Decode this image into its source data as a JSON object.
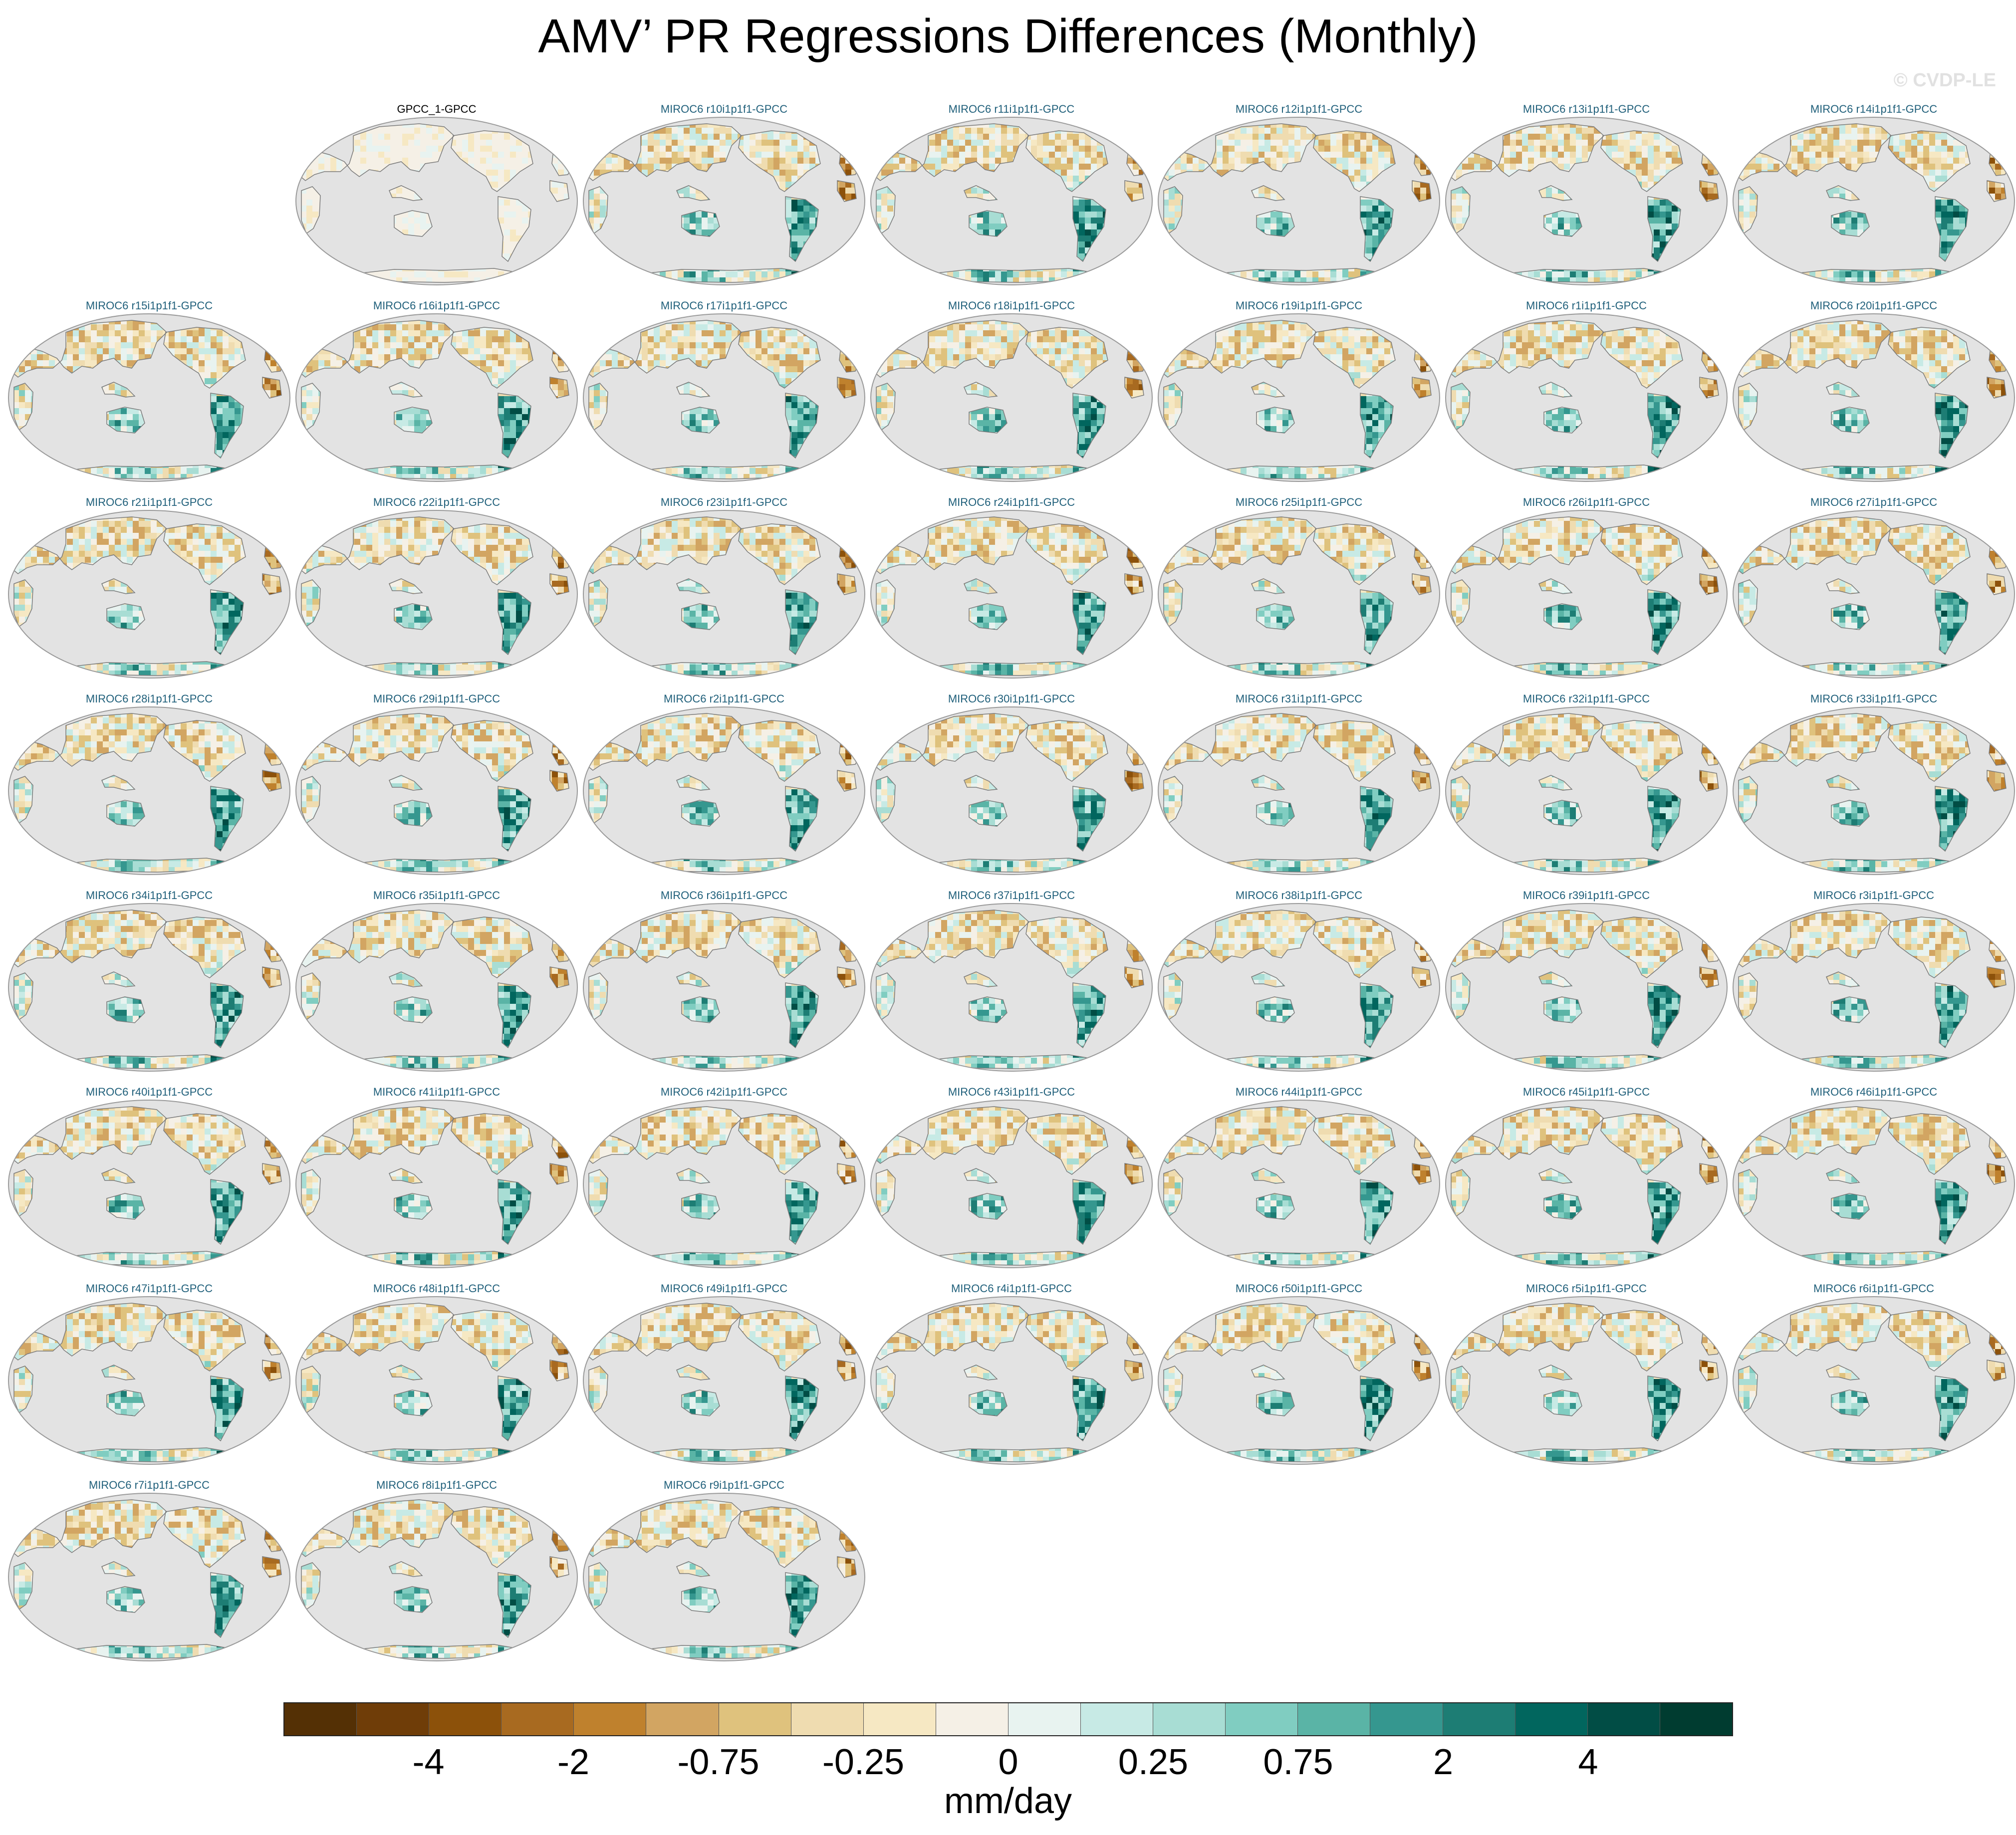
{
  "title": "AMV’ PR Regressions Differences (Monthly)",
  "watermark": "© CVDP-LE",
  "colors": {
    "ocean": "#e3e3e3",
    "coast": "#7a7a7a",
    "label_obs": "#000000",
    "label_model": "#1f5f7a"
  },
  "colorbar": {
    "unit": "mm/day",
    "colors": [
      "#543005",
      "#6f3d08",
      "#8c510a",
      "#a86a20",
      "#bf812d",
      "#d2a562",
      "#dfc27d",
      "#efdcb0",
      "#f6e8c3",
      "#f5f0e6",
      "#e8f3f0",
      "#c7eae5",
      "#a8ddd4",
      "#80cdc1",
      "#5ab4a6",
      "#35978f",
      "#1d7d74",
      "#01665e",
      "#014d45",
      "#003c30"
    ],
    "tick_labels": [
      "-4",
      "-2",
      "-0.75",
      "-0.25",
      "0",
      "0.25",
      "0.75",
      "2",
      "4"
    ]
  },
  "panels": [
    {
      "label": "GPCC_1-GPCC",
      "type": "obs"
    },
    {
      "label": "MIROC6 r10i1p1f1-GPCC",
      "type": "model"
    },
    {
      "label": "MIROC6 r11i1p1f1-GPCC",
      "type": "model"
    },
    {
      "label": "MIROC6 r12i1p1f1-GPCC",
      "type": "model"
    },
    {
      "label": "MIROC6 r13i1p1f1-GPCC",
      "type": "model"
    },
    {
      "label": "MIROC6 r14i1p1f1-GPCC",
      "type": "model"
    },
    {
      "label": "MIROC6 r15i1p1f1-GPCC",
      "type": "model"
    },
    {
      "label": "MIROC6 r16i1p1f1-GPCC",
      "type": "model"
    },
    {
      "label": "MIROC6 r17i1p1f1-GPCC",
      "type": "model"
    },
    {
      "label": "MIROC6 r18i1p1f1-GPCC",
      "type": "model"
    },
    {
      "label": "MIROC6 r19i1p1f1-GPCC",
      "type": "model"
    },
    {
      "label": "MIROC6 r1i1p1f1-GPCC",
      "type": "model"
    },
    {
      "label": "MIROC6 r20i1p1f1-GPCC",
      "type": "model"
    },
    {
      "label": "MIROC6 r21i1p1f1-GPCC",
      "type": "model"
    },
    {
      "label": "MIROC6 r22i1p1f1-GPCC",
      "type": "model"
    },
    {
      "label": "MIROC6 r23i1p1f1-GPCC",
      "type": "model"
    },
    {
      "label": "MIROC6 r24i1p1f1-GPCC",
      "type": "model"
    },
    {
      "label": "MIROC6 r25i1p1f1-GPCC",
      "type": "model"
    },
    {
      "label": "MIROC6 r26i1p1f1-GPCC",
      "type": "model"
    },
    {
      "label": "MIROC6 r27i1p1f1-GPCC",
      "type": "model"
    },
    {
      "label": "MIROC6 r28i1p1f1-GPCC",
      "type": "model"
    },
    {
      "label": "MIROC6 r29i1p1f1-GPCC",
      "type": "model"
    },
    {
      "label": "MIROC6 r2i1p1f1-GPCC",
      "type": "model"
    },
    {
      "label": "MIROC6 r30i1p1f1-GPCC",
      "type": "model"
    },
    {
      "label": "MIROC6 r31i1p1f1-GPCC",
      "type": "model"
    },
    {
      "label": "MIROC6 r32i1p1f1-GPCC",
      "type": "model"
    },
    {
      "label": "MIROC6 r33i1p1f1-GPCC",
      "type": "model"
    },
    {
      "label": "MIROC6 r34i1p1f1-GPCC",
      "type": "model"
    },
    {
      "label": "MIROC6 r35i1p1f1-GPCC",
      "type": "model"
    },
    {
      "label": "MIROC6 r36i1p1f1-GPCC",
      "type": "model"
    },
    {
      "label": "MIROC6 r37i1p1f1-GPCC",
      "type": "model"
    },
    {
      "label": "MIROC6 r38i1p1f1-GPCC",
      "type": "model"
    },
    {
      "label": "MIROC6 r39i1p1f1-GPCC",
      "type": "model"
    },
    {
      "label": "MIROC6 r3i1p1f1-GPCC",
      "type": "model"
    },
    {
      "label": "MIROC6 r40i1p1f1-GPCC",
      "type": "model"
    },
    {
      "label": "MIROC6 r41i1p1f1-GPCC",
      "type": "model"
    },
    {
      "label": "MIROC6 r42i1p1f1-GPCC",
      "type": "model"
    },
    {
      "label": "MIROC6 r43i1p1f1-GPCC",
      "type": "model"
    },
    {
      "label": "MIROC6 r44i1p1f1-GPCC",
      "type": "model"
    },
    {
      "label": "MIROC6 r45i1p1f1-GPCC",
      "type": "model"
    },
    {
      "label": "MIROC6 r46i1p1f1-GPCC",
      "type": "model"
    },
    {
      "label": "MIROC6 r47i1p1f1-GPCC",
      "type": "model"
    },
    {
      "label": "MIROC6 r48i1p1f1-GPCC",
      "type": "model"
    },
    {
      "label": "MIROC6 r49i1p1f1-GPCC",
      "type": "model"
    },
    {
      "label": "MIROC6 r4i1p1f1-GPCC",
      "type": "model"
    },
    {
      "label": "MIROC6 r50i1p1f1-GPCC",
      "type": "model"
    },
    {
      "label": "MIROC6 r5i1p1f1-GPCC",
      "type": "model"
    },
    {
      "label": "MIROC6 r6i1p1f1-GPCC",
      "type": "model"
    },
    {
      "label": "MIROC6 r7i1p1f1-GPCC",
      "type": "model"
    },
    {
      "label": "MIROC6 r8i1p1f1-GPCC",
      "type": "model"
    },
    {
      "label": "MIROC6 r9i1p1f1-GPCC",
      "type": "model"
    }
  ]
}
